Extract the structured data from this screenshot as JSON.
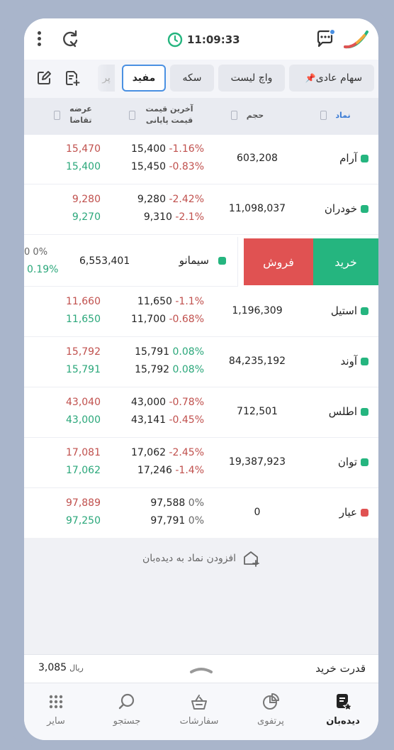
{
  "status": {
    "time": "11:09:33"
  },
  "tabs": {
    "items": [
      {
        "label": "سهام عادی",
        "pinned": true
      },
      {
        "label": "واچ لیست"
      },
      {
        "label": "سکه"
      },
      {
        "label": "مفید",
        "active": true
      },
      {
        "label": "پر"
      }
    ]
  },
  "columns": {
    "symbol": "نماد",
    "volume": "حجم",
    "last_price": "آخرین قیمت",
    "close_price": "قیمت پایانی",
    "ask": "عرضه",
    "bid": "تقاضا"
  },
  "rows": [
    {
      "name": "آرام",
      "status": "green",
      "volume": "603,208",
      "last": "15,400",
      "last_pct": "-1.16%",
      "close": "15,450",
      "close_pct": "-0.83%",
      "ask": "15,470",
      "bid": "15,400"
    },
    {
      "name": "خودران",
      "status": "green",
      "volume": "11,098,037",
      "last": "9,280",
      "last_pct": "-2.42%",
      "close": "9,310",
      "close_pct": "-2.1%",
      "ask": "9,280",
      "bid": "9,270"
    },
    {
      "name": "استیل",
      "status": "green",
      "volume": "1,196,309",
      "last": "11,650",
      "last_pct": "-1.1%",
      "close": "11,700",
      "close_pct": "-0.68%",
      "ask": "11,660",
      "bid": "11,650"
    },
    {
      "name": "آوند",
      "status": "green",
      "volume": "84,235,192",
      "last": "15,791",
      "last_pct": "0.08%",
      "close": "15,792",
      "close_pct": "0.08%",
      "ask": "15,792",
      "bid": "15,791"
    },
    {
      "name": "اطلس",
      "status": "green",
      "volume": "712,501",
      "last": "43,000",
      "last_pct": "-0.78%",
      "close": "43,141",
      "close_pct": "-0.45%",
      "ask": "43,040",
      "bid": "43,000"
    },
    {
      "name": "توان",
      "status": "green",
      "volume": "19,387,923",
      "last": "17,062",
      "last_pct": "-2.45%",
      "close": "17,246",
      "close_pct": "-1.4%",
      "ask": "17,081",
      "bid": "17,062"
    },
    {
      "name": "عیار",
      "status": "red",
      "volume": "0",
      "last": "97,588",
      "last_pct": "0%",
      "close": "97,791",
      "close_pct": "0%",
      "ask": "97,889",
      "bid": "97,250"
    }
  ],
  "swiped_row": {
    "name": "سیمانو",
    "status": "green",
    "volume": "6,553,401",
    "pct_top": "0%",
    "pct_top_prefix": "0",
    "pct_bottom": "0.19%",
    "buy_label": "خرید",
    "sell_label": "فروش"
  },
  "add_symbol": "افزودن نماد به دیده‌بان",
  "purchasing_power": {
    "label": "قدرت خرید",
    "value": "3,085",
    "unit": "ریال"
  },
  "bottom_nav": [
    {
      "label": "دیده‌بان",
      "icon": "watchlist-icon",
      "active": true
    },
    {
      "label": "پرتفوی",
      "icon": "portfolio-icon"
    },
    {
      "label": "سفارشات",
      "icon": "orders-icon"
    },
    {
      "label": "جستجو",
      "icon": "search-icon"
    },
    {
      "label": "سایر",
      "icon": "grid-icon"
    }
  ],
  "colors": {
    "accent": "#4a90e2",
    "negative": "#c0504d",
    "positive": "#2aa77a",
    "buy": "#25b57f",
    "sell": "#e05252"
  }
}
